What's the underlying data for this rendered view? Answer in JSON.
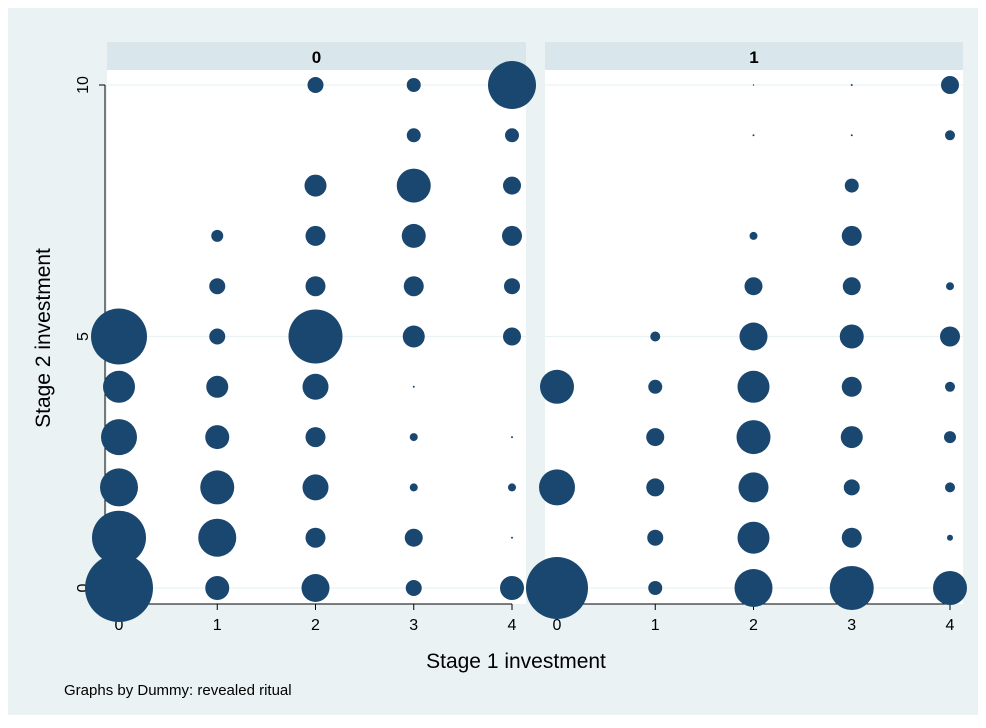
{
  "chart_data": {
    "type": "scatter",
    "subtype": "weighted-bubble",
    "xlabel": "Stage 1 investment",
    "ylabel": "Stage 2 investment",
    "note": "Graphs by Dummy: revealed ritual",
    "marker_color": "#1a476f",
    "background_outer": "#eaf2f3",
    "panel_header_color": "#d9e6eb",
    "xlim": [
      0,
      4
    ],
    "ylim": [
      0,
      10
    ],
    "x_ticks": [
      0,
      1,
      2,
      3,
      4
    ],
    "y_ticks": [
      0,
      5,
      10
    ],
    "grid": true,
    "panels": [
      {
        "label": "0",
        "points": [
          {
            "x": 0,
            "y": 0,
            "r": 34
          },
          {
            "x": 0,
            "y": 1,
            "r": 27
          },
          {
            "x": 0,
            "y": 2,
            "r": 19
          },
          {
            "x": 0,
            "y": 3,
            "r": 18
          },
          {
            "x": 0,
            "y": 4,
            "r": 16
          },
          {
            "x": 0,
            "y": 5,
            "r": 28
          },
          {
            "x": 1,
            "y": 0,
            "r": 12
          },
          {
            "x": 1,
            "y": 1,
            "r": 19
          },
          {
            "x": 1,
            "y": 2,
            "r": 17
          },
          {
            "x": 1,
            "y": 3,
            "r": 12
          },
          {
            "x": 1,
            "y": 4,
            "r": 11
          },
          {
            "x": 1,
            "y": 5,
            "r": 8
          },
          {
            "x": 1,
            "y": 6,
            "r": 8
          },
          {
            "x": 1,
            "y": 7,
            "r": 6
          },
          {
            "x": 2,
            "y": 0,
            "r": 14
          },
          {
            "x": 2,
            "y": 1,
            "r": 10
          },
          {
            "x": 2,
            "y": 2,
            "r": 13
          },
          {
            "x": 2,
            "y": 3,
            "r": 10
          },
          {
            "x": 2,
            "y": 4,
            "r": 13
          },
          {
            "x": 2,
            "y": 5,
            "r": 27
          },
          {
            "x": 2,
            "y": 6,
            "r": 10
          },
          {
            "x": 2,
            "y": 7,
            "r": 10
          },
          {
            "x": 2,
            "y": 8,
            "r": 11
          },
          {
            "x": 2,
            "y": 10,
            "r": 8
          },
          {
            "x": 3,
            "y": 0,
            "r": 8
          },
          {
            "x": 3,
            "y": 1,
            "r": 9
          },
          {
            "x": 3,
            "y": 2,
            "r": 4
          },
          {
            "x": 3,
            "y": 3,
            "r": 4
          },
          {
            "x": 3,
            "y": 4,
            "r": 1
          },
          {
            "x": 3,
            "y": 5,
            "r": 11
          },
          {
            "x": 3,
            "y": 6,
            "r": 10
          },
          {
            "x": 3,
            "y": 7,
            "r": 12
          },
          {
            "x": 3,
            "y": 8,
            "r": 17
          },
          {
            "x": 3,
            "y": 9,
            "r": 7
          },
          {
            "x": 3,
            "y": 10,
            "r": 7
          },
          {
            "x": 4,
            "y": 0,
            "r": 12
          },
          {
            "x": 4,
            "y": 1,
            "r": 1
          },
          {
            "x": 4,
            "y": 2,
            "r": 4
          },
          {
            "x": 4,
            "y": 3,
            "r": 1
          },
          {
            "x": 4,
            "y": 5,
            "r": 9
          },
          {
            "x": 4,
            "y": 6,
            "r": 8
          },
          {
            "x": 4,
            "y": 7,
            "r": 10
          },
          {
            "x": 4,
            "y": 8,
            "r": 9
          },
          {
            "x": 4,
            "y": 9,
            "r": 7
          },
          {
            "x": 4,
            "y": 10,
            "r": 24
          }
        ]
      },
      {
        "label": "1",
        "points": [
          {
            "x": 0,
            "y": 0,
            "r": 31
          },
          {
            "x": 0,
            "y": 2,
            "r": 18
          },
          {
            "x": 0,
            "y": 4,
            "r": 17
          },
          {
            "x": 1,
            "y": 0,
            "r": 7
          },
          {
            "x": 1,
            "y": 1,
            "r": 8
          },
          {
            "x": 1,
            "y": 2,
            "r": 9
          },
          {
            "x": 1,
            "y": 3,
            "r": 9
          },
          {
            "x": 1,
            "y": 4,
            "r": 7
          },
          {
            "x": 1,
            "y": 5,
            "r": 5
          },
          {
            "x": 2,
            "y": 0,
            "r": 19
          },
          {
            "x": 2,
            "y": 1,
            "r": 16
          },
          {
            "x": 2,
            "y": 2,
            "r": 15
          },
          {
            "x": 2,
            "y": 3,
            "r": 17
          },
          {
            "x": 2,
            "y": 4,
            "r": 16
          },
          {
            "x": 2,
            "y": 5,
            "r": 14
          },
          {
            "x": 2,
            "y": 6,
            "r": 9
          },
          {
            "x": 2,
            "y": 7,
            "r": 4
          },
          {
            "x": 2,
            "y": 9,
            "r": 1
          },
          {
            "x": 2,
            "y": 10,
            "r": 0.5
          },
          {
            "x": 3,
            "y": 0,
            "r": 22
          },
          {
            "x": 3,
            "y": 1,
            "r": 10
          },
          {
            "x": 3,
            "y": 2,
            "r": 8
          },
          {
            "x": 3,
            "y": 3,
            "r": 11
          },
          {
            "x": 3,
            "y": 4,
            "r": 10
          },
          {
            "x": 3,
            "y": 5,
            "r": 12
          },
          {
            "x": 3,
            "y": 6,
            "r": 9
          },
          {
            "x": 3,
            "y": 7,
            "r": 10
          },
          {
            "x": 3,
            "y": 8,
            "r": 7
          },
          {
            "x": 3,
            "y": 9,
            "r": 1
          },
          {
            "x": 3,
            "y": 10,
            "r": 1
          },
          {
            "x": 4,
            "y": 0,
            "r": 17
          },
          {
            "x": 4,
            "y": 1,
            "r": 3
          },
          {
            "x": 4,
            "y": 2,
            "r": 5
          },
          {
            "x": 4,
            "y": 3,
            "r": 6
          },
          {
            "x": 4,
            "y": 4,
            "r": 5
          },
          {
            "x": 4,
            "y": 5,
            "r": 10
          },
          {
            "x": 4,
            "y": 6,
            "r": 4
          },
          {
            "x": 4,
            "y": 9,
            "r": 5
          },
          {
            "x": 4,
            "y": 10,
            "r": 9
          }
        ]
      }
    ]
  }
}
